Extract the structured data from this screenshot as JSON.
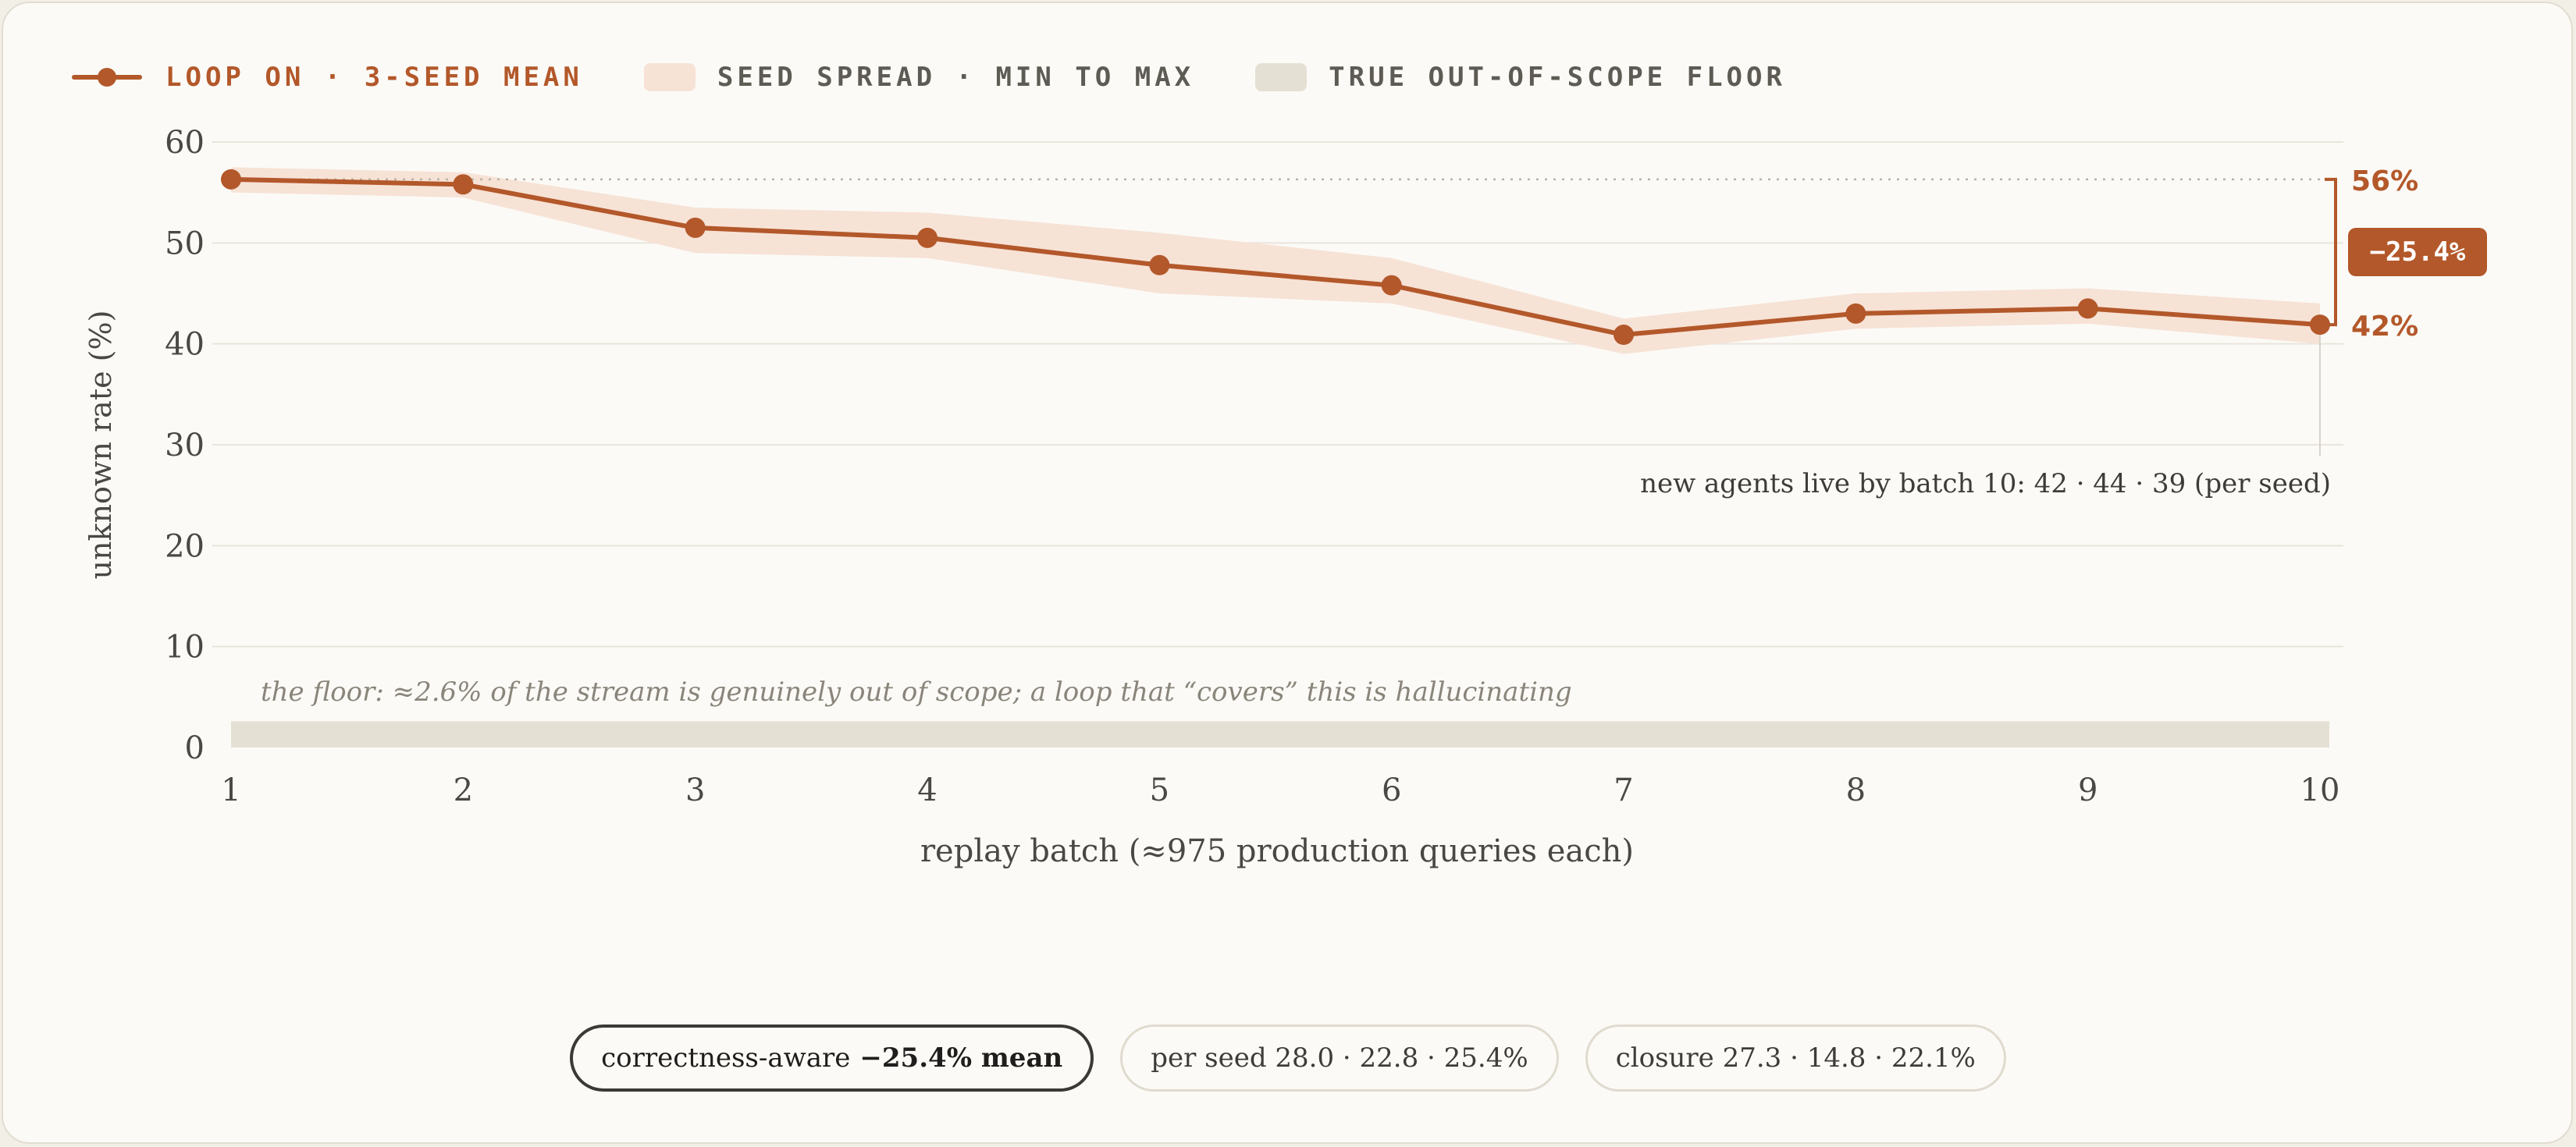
{
  "legend": {
    "loop_on": "LOOP ON · 3-SEED MEAN",
    "spread": "SEED SPREAD · MIN TO MAX",
    "floor": "TRUE OUT-OF-SCOPE FLOOR"
  },
  "colors": {
    "line": "#b3582a",
    "spread": "#f7e2d6",
    "floor": "#e5e0d4",
    "grid": "#e9e5dc",
    "axis_text": "#4a4844",
    "annotation_text": "#8a857b"
  },
  "chart_data": {
    "type": "line",
    "xlabel": "replay batch (≈975 production queries each)",
    "ylabel": "unknown rate (%)",
    "x": [
      1,
      2,
      3,
      4,
      5,
      6,
      7,
      8,
      9,
      10
    ],
    "xlim": [
      1,
      10
    ],
    "ylim": [
      0,
      60
    ],
    "yticks": [
      0,
      10,
      20,
      30,
      40,
      50,
      60
    ],
    "grid": true,
    "legend_position": "top-left",
    "series": [
      {
        "name": "LOOP ON · 3-SEED MEAN",
        "values": [
          56.3,
          55.8,
          51.5,
          50.5,
          47.8,
          45.8,
          40.9,
          43.0,
          43.5,
          41.9
        ]
      }
    ],
    "spread_min": [
      55.0,
      54.5,
      49.0,
      48.5,
      45.0,
      44.0,
      39.0,
      41.5,
      42.0,
      40.0
    ],
    "spread_max": [
      57.5,
      57.0,
      53.5,
      53.0,
      51.0,
      48.5,
      42.5,
      45.0,
      45.5,
      44.0
    ],
    "floor_value": 2.6,
    "annotations": {
      "start_label": "56%",
      "end_label": "42%",
      "change_label": "−25.4%",
      "agents_note": "new agents live by batch 10: 42 · 44 · 39 (per seed)",
      "floor_note": "the floor: ≈2.6% of the stream is genuinely out of scope; a loop that “covers” this is hallucinating"
    }
  },
  "pills": {
    "primary_prefix": "correctness-aware",
    "primary_value": "−25.4% mean",
    "per_seed": "per seed 28.0 · 22.8 · 25.4%",
    "closure": "closure 27.3 · 14.8 · 22.1%"
  }
}
